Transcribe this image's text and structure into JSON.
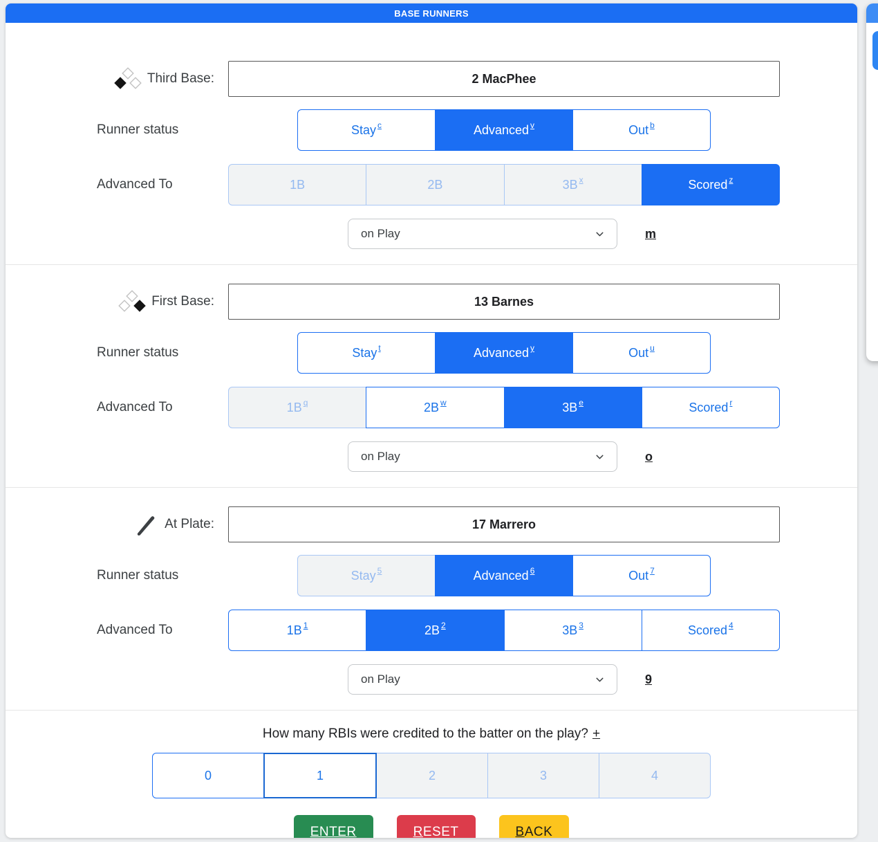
{
  "page": {
    "title": "BASE RUNNERS"
  },
  "colors": {
    "accent_blue": "#1b6ef3",
    "button_text_blue": "#1a73e8",
    "disabled_bg": "#f1f3f4",
    "disabled_text": "#94b9f0",
    "enter_green": "#288c52",
    "reset_red": "#dc3c4b",
    "back_yellow": "#fcc41d"
  },
  "runners": [
    {
      "icon": "bases-third-occupied-icon",
      "label": "Third Base:",
      "player": "2 MacPhee",
      "status_label": "Runner status",
      "statuses": [
        {
          "label": "Stay",
          "shortcut": "c",
          "state": "normal"
        },
        {
          "label": "Advanced",
          "shortcut": "v",
          "state": "selected"
        },
        {
          "label": "Out",
          "shortcut": "b",
          "state": "normal"
        }
      ],
      "advanced_label": "Advanced To",
      "advanced_to": [
        {
          "label": "1B",
          "shortcut": "",
          "state": "disabled"
        },
        {
          "label": "2B",
          "shortcut": "",
          "state": "disabled"
        },
        {
          "label": "3B",
          "shortcut": "x",
          "state": "disabled"
        },
        {
          "label": "Scored",
          "shortcut": "z",
          "state": "selected"
        }
      ],
      "play_select": {
        "value": "on Play",
        "shortcut": "m"
      }
    },
    {
      "icon": "bases-first-occupied-icon",
      "label": "First Base:",
      "player": "13 Barnes",
      "status_label": "Runner status",
      "statuses": [
        {
          "label": "Stay",
          "shortcut": "t",
          "state": "normal"
        },
        {
          "label": "Advanced",
          "shortcut": "y",
          "state": "selected"
        },
        {
          "label": "Out",
          "shortcut": "u",
          "state": "normal"
        }
      ],
      "advanced_label": "Advanced To",
      "advanced_to": [
        {
          "label": "1B",
          "shortcut": "q",
          "state": "disabled"
        },
        {
          "label": "2B",
          "shortcut": "w",
          "state": "normal"
        },
        {
          "label": "3B",
          "shortcut": "e",
          "state": "selected"
        },
        {
          "label": "Scored",
          "shortcut": "r",
          "state": "normal"
        }
      ],
      "play_select": {
        "value": "on Play",
        "shortcut": "o"
      }
    },
    {
      "icon": "bat-icon",
      "label": "At Plate:",
      "player": "17 Marrero",
      "status_label": "Runner status",
      "statuses": [
        {
          "label": "Stay",
          "shortcut": "5",
          "state": "disabled"
        },
        {
          "label": "Advanced",
          "shortcut": "6",
          "state": "selected"
        },
        {
          "label": "Out",
          "shortcut": "7",
          "state": "normal"
        }
      ],
      "advanced_label": "Advanced To",
      "advanced_to": [
        {
          "label": "1B",
          "shortcut": "1",
          "state": "normal"
        },
        {
          "label": "2B",
          "shortcut": "2",
          "state": "selected"
        },
        {
          "label": "3B",
          "shortcut": "3",
          "state": "normal"
        },
        {
          "label": "Scored",
          "shortcut": "4",
          "state": "normal"
        }
      ],
      "play_select": {
        "value": "on Play",
        "shortcut": "9"
      }
    }
  ],
  "rbi": {
    "question": "How many RBIs were credited to the batter on the play?",
    "question_shortcut": "+",
    "options": [
      {
        "label": "0",
        "shortcut": "",
        "state": "normal"
      },
      {
        "label": "1",
        "shortcut": "",
        "state": "focused"
      },
      {
        "label": "2",
        "shortcut": "",
        "state": "disabled"
      },
      {
        "label": "3",
        "shortcut": "",
        "state": "disabled"
      },
      {
        "label": "4",
        "shortcut": "",
        "state": "disabled"
      }
    ]
  },
  "actions": [
    {
      "name": "enter",
      "label_head": "ENTER",
      "label_tail": ""
    },
    {
      "name": "reset",
      "label_head": "R",
      "label_tail": "ESET"
    },
    {
      "name": "back",
      "label_head": "B",
      "label_tail": "ACK"
    }
  ]
}
